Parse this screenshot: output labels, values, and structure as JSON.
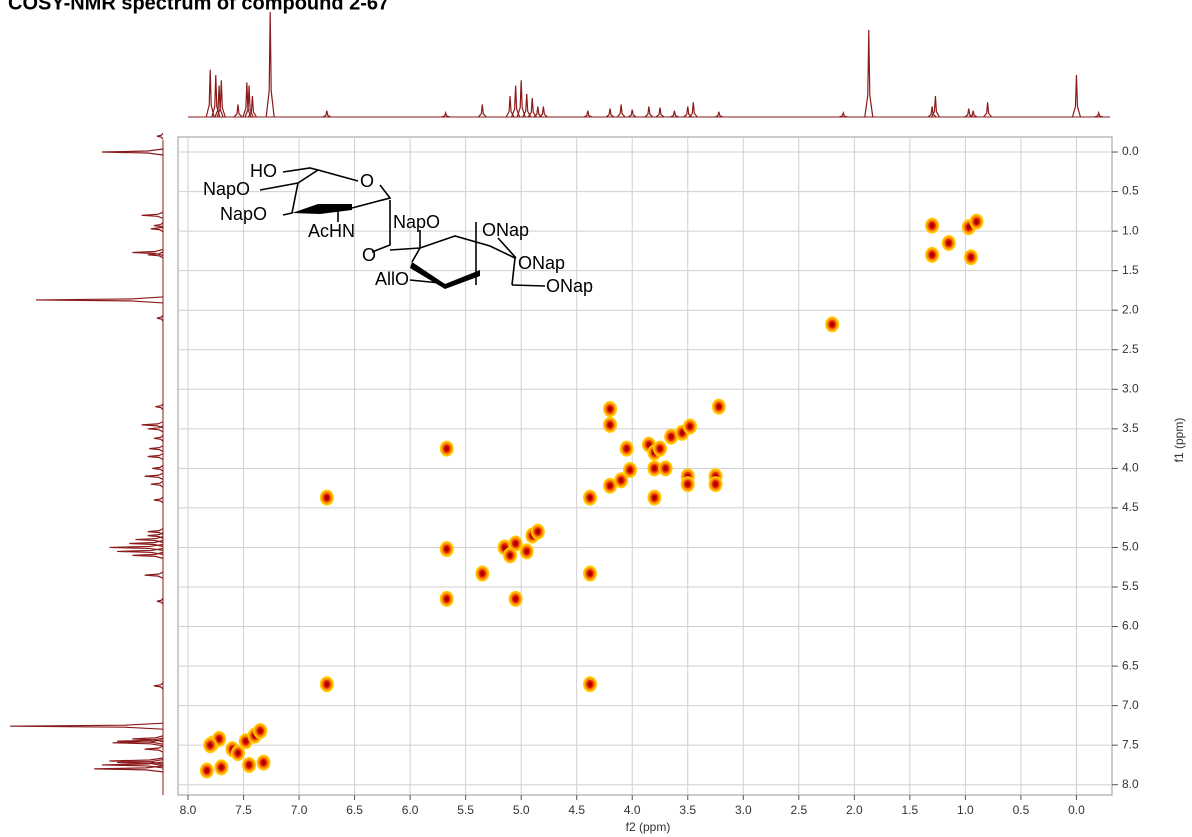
{
  "chart_data": {
    "type": "scatter",
    "title": "COSY-NMR spectrum of compound 2-67",
    "x_label": "f2 (ppm)",
    "y_label": "f1 (ppm)",
    "xlim": [
      8.09,
      -0.32
    ],
    "ylim": [
      -0.19,
      8.13
    ],
    "xticks": [
      {
        "value": 8,
        "label": "8.0"
      },
      7.5,
      {
        "value": 7,
        "label": "7.0"
      },
      6.5,
      {
        "value": 6,
        "label": "6.0"
      },
      5.5,
      {
        "value": 5,
        "label": "5.0"
      },
      4.5,
      {
        "value": 4,
        "label": "4.0"
      },
      3.5,
      {
        "value": 3,
        "label": "3.0"
      },
      2.5,
      {
        "value": 2,
        "label": "2.0"
      },
      1.5,
      {
        "value": 1,
        "label": "1.0"
      },
      0.5,
      {
        "value": 0,
        "label": "0.0"
      }
    ],
    "yticks": [
      {
        "value": 0,
        "label": "0.0"
      },
      0.5,
      {
        "value": 1,
        "label": "1.0"
      },
      1.5,
      {
        "value": 2,
        "label": "2.0"
      },
      2.5,
      {
        "value": 3,
        "label": "3.0"
      },
      3.5,
      {
        "value": 4,
        "label": "4.0"
      },
      4.5,
      {
        "value": 5,
        "label": "5.0"
      },
      5.5,
      {
        "value": 6,
        "label": "6.0"
      },
      6.5,
      {
        "value": 7,
        "label": "7.0"
      },
      7.5,
      {
        "value": 8,
        "label": "8.0"
      }
    ],
    "grid": true,
    "x": [
      7.83,
      7.78,
      7.72,
      7.7,
      7.6,
      7.55,
      7.48,
      7.45,
      7.4,
      7.35,
      7.32,
      7.8,
      6.75,
      6.75,
      4.38,
      4.38,
      5.67,
      5.67,
      5.05,
      4.38,
      5.35,
      5.15,
      5.05,
      4.9,
      5.1,
      4.95,
      4.85,
      4.2,
      4.2,
      4.2,
      4.1,
      4.02,
      4.05,
      3.85,
      3.8,
      3.75,
      3.65,
      3.55,
      3.48,
      3.22,
      3.5,
      3.5,
      3.25,
      3.25,
      3.8,
      3.7,
      3.8,
      5.67,
      2.2,
      0.97,
      0.95,
      1.3,
      1.3,
      1.15,
      0.9
    ],
    "y": [
      7.82,
      7.48,
      7.42,
      7.78,
      7.55,
      7.6,
      7.45,
      7.75,
      7.38,
      7.32,
      7.72,
      7.5,
      6.73,
      4.37,
      6.73,
      4.37,
      5.65,
      5.02,
      5.65,
      5.33,
      5.33,
      5.0,
      4.95,
      4.85,
      5.1,
      5.05,
      4.8,
      3.25,
      3.45,
      4.22,
      4.15,
      4.02,
      3.75,
      3.7,
      3.8,
      3.75,
      3.6,
      3.55,
      3.47,
      3.22,
      4.1,
      4.2,
      4.1,
      4.2,
      4.0,
      4.0,
      4.37,
      3.75,
      2.18,
      0.95,
      1.33,
      1.3,
      0.93,
      1.15,
      0.88
    ],
    "projection": {
      "ppm": [
        7.8,
        7.75,
        7.72,
        7.7,
        7.55,
        7.47,
        7.45,
        7.42,
        7.26,
        6.75,
        5.68,
        5.35,
        5.1,
        5.05,
        5.0,
        4.95,
        4.9,
        4.85,
        4.8,
        4.4,
        4.2,
        4.1,
        4.0,
        3.85,
        3.75,
        3.62,
        3.5,
        3.45,
        3.22,
        2.1,
        1.87,
        1.3,
        1.27,
        0.97,
        0.93,
        0.8,
        0.0,
        -0.2
      ],
      "intensity": [
        45,
        40,
        30,
        35,
        12,
        33,
        30,
        20,
        100,
        6,
        4,
        12,
        20,
        30,
        35,
        22,
        18,
        10,
        10,
        6,
        8,
        12,
        7,
        10,
        9,
        6,
        10,
        14,
        5,
        4,
        83,
        10,
        20,
        8,
        6,
        14,
        40,
        4
      ],
      "color": "#8b1a1a"
    },
    "peak_colors": [
      "#ffcc00",
      "#ff8a00",
      "#e52a00",
      "#a80000"
    ],
    "structure_labels": [
      "HO",
      "O",
      "NapO",
      "NapO",
      "AcHN",
      "NapO",
      "ONap",
      "O",
      "ONap",
      "AllO",
      "ONap"
    ]
  }
}
